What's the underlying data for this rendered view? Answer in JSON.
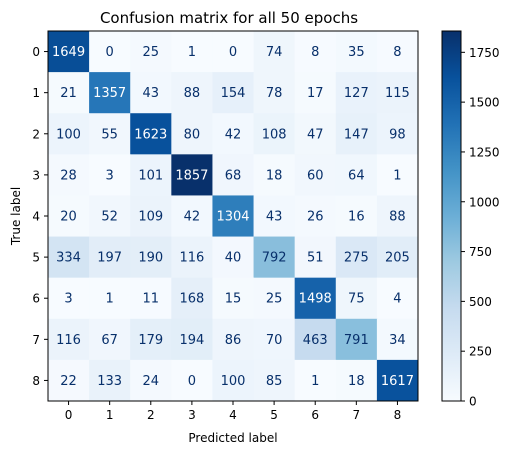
{
  "chart_data": {
    "type": "heatmap",
    "title": "Confusion matrix for all 50 epochs",
    "xlabel": "Predicted label",
    "ylabel": "True label",
    "x_categories": [
      "0",
      "1",
      "2",
      "3",
      "4",
      "5",
      "6",
      "7",
      "8"
    ],
    "y_categories": [
      "0",
      "1",
      "2",
      "3",
      "4",
      "5",
      "6",
      "7",
      "8"
    ],
    "values": [
      [
        1649,
        0,
        25,
        1,
        0,
        74,
        8,
        35,
        8
      ],
      [
        21,
        1357,
        43,
        88,
        154,
        78,
        17,
        127,
        115
      ],
      [
        100,
        55,
        1623,
        80,
        42,
        108,
        47,
        147,
        98
      ],
      [
        28,
        3,
        101,
        1857,
        68,
        18,
        60,
        64,
        1
      ],
      [
        20,
        52,
        109,
        42,
        1304,
        43,
        26,
        16,
        88
      ],
      [
        334,
        197,
        190,
        116,
        40,
        792,
        51,
        275,
        205
      ],
      [
        3,
        1,
        11,
        168,
        15,
        25,
        1498,
        75,
        4
      ],
      [
        116,
        67,
        179,
        194,
        86,
        70,
        463,
        791,
        34
      ],
      [
        22,
        133,
        24,
        0,
        100,
        85,
        1,
        18,
        1617
      ]
    ],
    "colormap": "Blues",
    "color_range": [
      0,
      1857
    ],
    "colorbar_ticks": [
      0,
      250,
      500,
      750,
      1000,
      1250,
      1500,
      1750
    ],
    "colorbar_tick_labels": [
      "0",
      "250",
      "500",
      "750",
      "1000",
      "1250",
      "1500",
      "1750"
    ],
    "grid": false
  }
}
